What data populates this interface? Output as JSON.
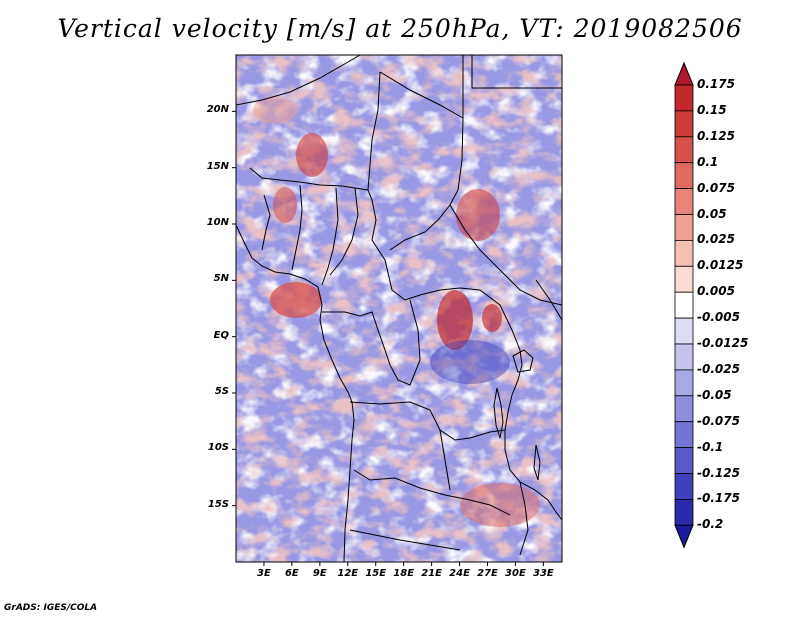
{
  "title": "Vertical velocity [m/s] at 250hPa, VT: 2019082506",
  "credit": "GrADS: IGES/COLA",
  "map": {
    "variable": "Vertical velocity",
    "units": "m/s",
    "level": "250hPa",
    "valid_time": "2019082506",
    "lon_range": [
      0,
      35
    ],
    "lat_range": [
      -20,
      25
    ],
    "lat_labels": [
      "20N",
      "15N",
      "10N",
      "5N",
      "EQ",
      "5S",
      "10S",
      "15S"
    ],
    "lat_values": [
      20,
      15,
      10,
      5,
      0,
      -5,
      -10,
      -15
    ],
    "lon_labels": [
      "3E",
      "6E",
      "9E",
      "12E",
      "15E",
      "18E",
      "21E",
      "24E",
      "27E",
      "30E",
      "33E"
    ],
    "lon_values": [
      3,
      6,
      9,
      12,
      15,
      18,
      21,
      24,
      27,
      30,
      33
    ]
  },
  "colorbar": {
    "labels": [
      "0.175",
      "0.15",
      "0.125",
      "0.1",
      "0.075",
      "0.05",
      "0.025",
      "0.0125",
      "0.005",
      "-0.005",
      "-0.0125",
      "-0.025",
      "-0.05",
      "-0.075",
      "-0.1",
      "-0.125",
      "-0.175",
      "-0.2"
    ],
    "colors": [
      "#b2182b",
      "#c1272d",
      "#cd3a3a",
      "#d6504c",
      "#e06a62",
      "#e8857b",
      "#f0a195",
      "#f6bfb4",
      "#fbdcd4",
      "#ffffff",
      "#dcdcf5",
      "#c3c3ee",
      "#a9a9e6",
      "#8f8fde",
      "#7474d4",
      "#5a5ac8",
      "#4040bb",
      "#2a2aaa",
      "#1a1a9c"
    ]
  }
}
